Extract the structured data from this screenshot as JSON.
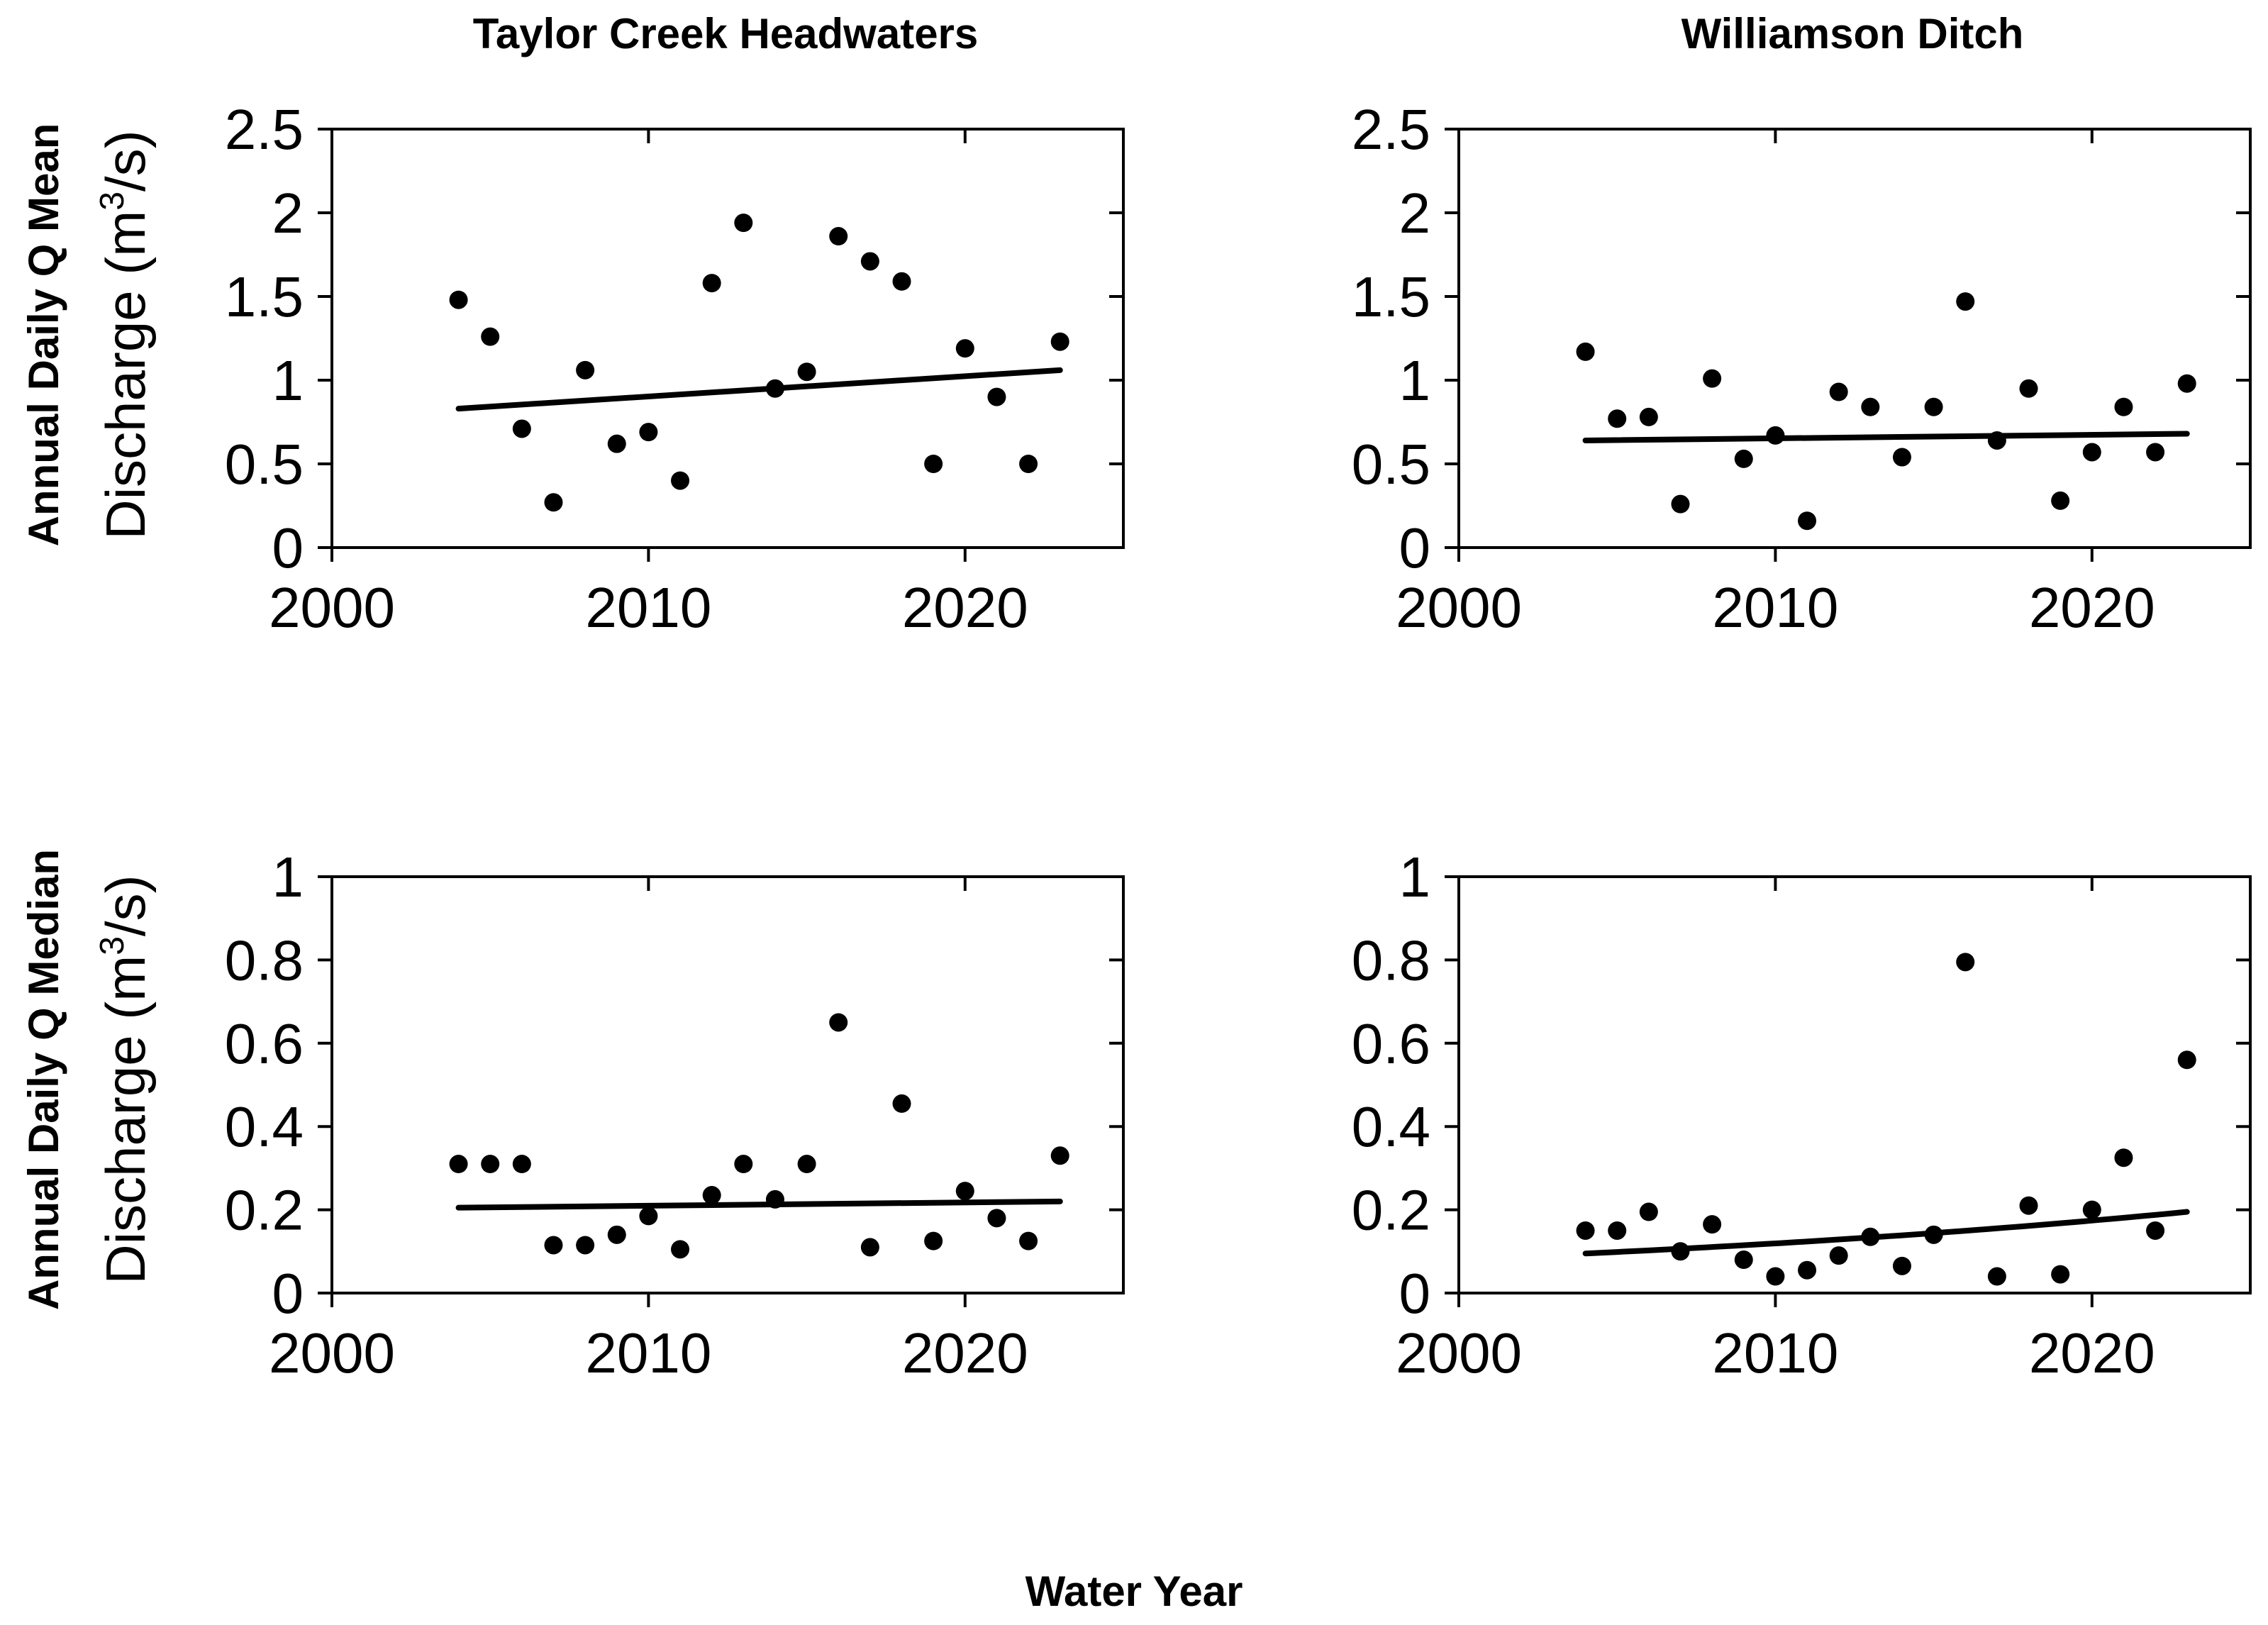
{
  "figure": {
    "xlabel": "Water Year",
    "rows": [
      {
        "label": "Annual Daily Q Mean",
        "ylabel": "Discharge (m",
        "ylabel_sup": "3",
        "ylabel_tail": "/s)"
      },
      {
        "label": "Annual Daily Q Median",
        "ylabel": "Discharge (m",
        "ylabel_sup": "3",
        "ylabel_tail": "/s)"
      }
    ],
    "columns": [
      "Taylor Creek Headwaters",
      "Williamson Ditch"
    ]
  },
  "chart_data": [
    {
      "type": "scatter",
      "title": "Taylor Creek Headwaters",
      "row_label": "Annual Daily Q Mean",
      "xlabel": "Water Year",
      "ylabel": "Discharge (m3/s)",
      "xlim": [
        2000,
        2025
      ],
      "ylim": [
        0,
        2.5
      ],
      "xticks": [
        2000,
        2010,
        2020
      ],
      "xtick_labels": [
        "2000",
        "2010",
        "2020"
      ],
      "yticks": [
        0,
        0.5,
        1,
        1.5,
        2,
        2.5
      ],
      "ytick_labels": [
        "0",
        "0.5",
        "1",
        "1.5",
        "2",
        "2.5"
      ],
      "x": [
        2004,
        2005,
        2006,
        2007,
        2008,
        2009,
        2010,
        2011,
        2012,
        2013,
        2014,
        2015,
        2016,
        2017,
        2018,
        2019,
        2020,
        2021,
        2022,
        2023
      ],
      "y": [
        1.48,
        1.26,
        0.71,
        0.27,
        1.06,
        0.62,
        0.69,
        0.4,
        1.58,
        1.94,
        0.95,
        1.05,
        1.86,
        1.71,
        1.59,
        0.5,
        1.19,
        0.9,
        0.5,
        1.23
      ],
      "trend": {
        "x": [
          2004,
          2023
        ],
        "y": [
          0.83,
          1.06
        ],
        "shape": "linear"
      }
    },
    {
      "type": "scatter",
      "title": "Williamson Ditch",
      "row_label": "Annual Daily Q Mean",
      "xlabel": "Water Year",
      "ylabel": "Discharge (m3/s)",
      "xlim": [
        2000,
        2025
      ],
      "ylim": [
        0,
        2.5
      ],
      "xticks": [
        2000,
        2010,
        2020
      ],
      "xtick_labels": [
        "2000",
        "2010",
        "2020"
      ],
      "yticks": [
        0,
        0.5,
        1,
        1.5,
        2,
        2.5
      ],
      "ytick_labels": [
        "0",
        "0.5",
        "1",
        "1.5",
        "2",
        "2.5"
      ],
      "x": [
        2004,
        2005,
        2006,
        2007,
        2008,
        2009,
        2010,
        2011,
        2012,
        2013,
        2014,
        2015,
        2016,
        2017,
        2018,
        2019,
        2020,
        2021,
        2022,
        2023
      ],
      "y": [
        1.17,
        0.77,
        0.78,
        0.26,
        1.01,
        0.53,
        0.67,
        0.16,
        0.93,
        0.84,
        0.54,
        0.84,
        1.47,
        0.64,
        0.95,
        0.28,
        0.57,
        0.84,
        0.57,
        0.98
      ],
      "trend": {
        "x": [
          2004,
          2023
        ],
        "y": [
          0.64,
          0.68
        ],
        "shape": "linear"
      }
    },
    {
      "type": "scatter",
      "title": "Taylor Creek Headwaters",
      "row_label": "Annual Daily Q Median",
      "xlabel": "Water Year",
      "ylabel": "Discharge (m3/s)",
      "xlim": [
        2000,
        2025
      ],
      "ylim": [
        0,
        1
      ],
      "xticks": [
        2000,
        2010,
        2020
      ],
      "xtick_labels": [
        "2000",
        "2010",
        "2020"
      ],
      "yticks": [
        0,
        0.2,
        0.4,
        0.6,
        0.8,
        1
      ],
      "ytick_labels": [
        "0",
        "0.2",
        "0.4",
        "0.6",
        "0.8",
        "1"
      ],
      "x": [
        2004,
        2005,
        2006,
        2007,
        2008,
        2009,
        2010,
        2011,
        2012,
        2013,
        2014,
        2015,
        2016,
        2017,
        2018,
        2019,
        2020,
        2021,
        2022,
        2023
      ],
      "y": [
        0.31,
        0.31,
        0.31,
        0.115,
        0.115,
        0.14,
        0.185,
        0.105,
        0.235,
        0.31,
        0.225,
        0.31,
        0.65,
        0.11,
        0.455,
        0.125,
        0.245,
        0.18,
        0.125,
        0.33
      ],
      "trend": {
        "x": [
          2004,
          2023
        ],
        "y": [
          0.205,
          0.22
        ],
        "shape": "linear"
      }
    },
    {
      "type": "scatter",
      "title": "Williamson Ditch",
      "row_label": "Annual Daily Q Median",
      "xlabel": "Water Year",
      "ylabel": "Discharge (m3/s)",
      "xlim": [
        2000,
        2025
      ],
      "ylim": [
        0,
        1
      ],
      "xticks": [
        2000,
        2010,
        2020
      ],
      "xtick_labels": [
        "2000",
        "2010",
        "2020"
      ],
      "yticks": [
        0,
        0.2,
        0.4,
        0.6,
        0.8,
        1
      ],
      "ytick_labels": [
        "0",
        "0.2",
        "0.4",
        "0.6",
        "0.8",
        "1"
      ],
      "x": [
        2004,
        2005,
        2006,
        2007,
        2008,
        2009,
        2010,
        2011,
        2012,
        2013,
        2014,
        2015,
        2016,
        2017,
        2018,
        2019,
        2020,
        2021,
        2022,
        2023
      ],
      "y": [
        0.15,
        0.15,
        0.195,
        0.1,
        0.165,
        0.08,
        0.04,
        0.055,
        0.09,
        0.135,
        0.065,
        0.14,
        0.795,
        0.04,
        0.21,
        0.045,
        0.2,
        0.325,
        0.15,
        0.56
      ],
      "trend": {
        "x": [
          2004,
          2023
        ],
        "y": [
          0.095,
          0.195
        ],
        "shape": "exponential"
      }
    }
  ]
}
